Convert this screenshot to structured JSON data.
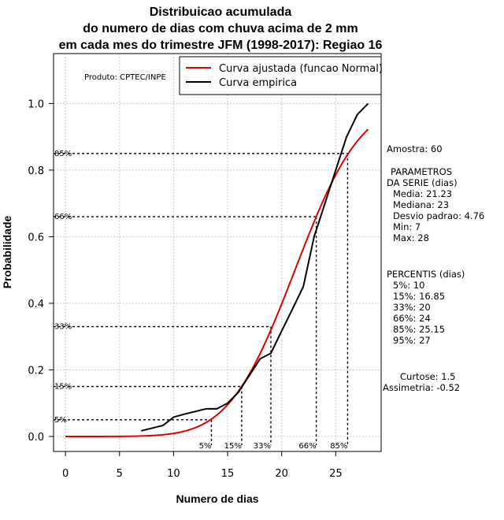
{
  "chart_data": {
    "type": "line",
    "title": [
      "Distribuicao acumulada",
      "do numero de dias com chuva acima de 2 mm",
      "em cada mes do trimestre JFM (1998-2017): Regiao 16"
    ],
    "xlabel": "Numero de dias",
    "ylabel": "Probabilidade",
    "xlim": [
      -1.1,
      29.2
    ],
    "ylim": [
      -0.045,
      1.15
    ],
    "x_ticks": [
      0,
      5,
      10,
      15,
      20,
      25
    ],
    "y_ticks": [
      0.0,
      0.2,
      0.4,
      0.6,
      0.8,
      1.0
    ],
    "y_tick_labels": [
      "0.0",
      "0.2",
      "0.4",
      "0.6",
      "0.8",
      "1.0"
    ],
    "grid": true,
    "legend": {
      "position": "top-right",
      "entries": [
        {
          "label": "Curva ajustada (funcao Normal)",
          "color": "#e00000"
        },
        {
          "label": "Curva empirica",
          "color": "#000000"
        }
      ]
    },
    "series": [
      {
        "name": "Curva ajustada (funcao Normal)",
        "color": "#e00000",
        "kind": "normal_cdf",
        "mean": 21.23,
        "sd": 4.76,
        "x_range": [
          0,
          28
        ]
      },
      {
        "name": "Curva empirica",
        "color": "#000000",
        "x": [
          7,
          8,
          9,
          9.5,
          10,
          11,
          12,
          13,
          14,
          15,
          16,
          17,
          18,
          19,
          20,
          21,
          22,
          23,
          24,
          25,
          26,
          27,
          28
        ],
        "values": [
          0.017,
          0.025,
          0.033,
          0.045,
          0.058,
          0.067,
          0.075,
          0.083,
          0.083,
          0.1,
          0.133,
          0.183,
          0.233,
          0.25,
          0.317,
          0.383,
          0.45,
          0.6,
          0.7,
          0.8,
          0.9,
          0.967,
          1.0
        ]
      }
    ],
    "percentile_markers": [
      {
        "label": "5%",
        "y_label": "5%",
        "p": 0.05,
        "x": 13.5
      },
      {
        "label": "15%",
        "y_label": "15%",
        "p": 0.15,
        "x": 16.3
      },
      {
        "label": "33%",
        "y_label": "33%",
        "p": 0.33,
        "x": 19.0
      },
      {
        "label": "66%",
        "y_label": "66%",
        "p": 0.66,
        "x": 23.2
      },
      {
        "label": "85%",
        "y_label": "85%",
        "p": 0.85,
        "x": 26.1
      }
    ],
    "annotations": {
      "producer": "Produto: CPTEC/INPE",
      "side_info": [
        "Amostra: 60",
        "PARAMETROS",
        "DA SERIE (dias)",
        "Media: 21.23",
        "Mediana: 23",
        "Desvio padrao: 4.76",
        "Min: 7",
        "Max: 28",
        "PERCENTIS (dias)",
        "5%: 10",
        "15%: 16.85",
        "33%: 20",
        "66%: 24",
        "85%: 25.15",
        "95%: 27",
        "Curtose: 1.5",
        "Assimetria: -0.52"
      ]
    }
  }
}
